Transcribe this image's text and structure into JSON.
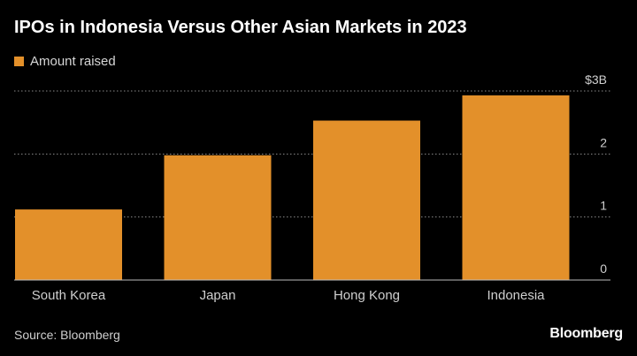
{
  "title": "IPOs in Indonesia Versus Other Asian Markets in 2023",
  "legend": {
    "label": "Amount raised",
    "color": "#e3902a"
  },
  "source": "Source: Bloomberg",
  "brand": "Bloomberg",
  "chart_data": {
    "type": "bar",
    "title": "IPOs in Indonesia Versus Other Asian Markets in 2023",
    "categories": [
      "South Korea",
      "Japan",
      "Hong Kong",
      "Indonesia"
    ],
    "series": [
      {
        "name": "Amount raised",
        "values": [
          1.12,
          1.98,
          2.53,
          2.93
        ],
        "color": "#e3902a"
      }
    ],
    "ylim": [
      0,
      3
    ],
    "yticks": [
      0,
      1,
      2,
      3
    ],
    "ytick_labels": [
      "0",
      "1",
      "2",
      "$3B"
    ],
    "y_axis_side": "right",
    "grid": true,
    "legend_position": "top-left"
  }
}
